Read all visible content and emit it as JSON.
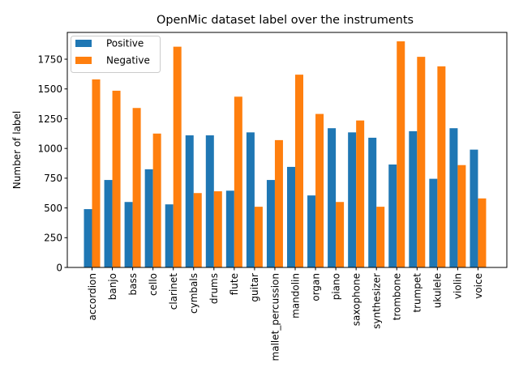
{
  "chart_data": {
    "type": "bar",
    "title": "OpenMic dataset label over the instruments",
    "xlabel": "",
    "ylabel": "Number of label",
    "ylim": [
      0,
      1975
    ],
    "yticks": [
      0,
      250,
      500,
      750,
      1000,
      1250,
      1500,
      1750
    ],
    "grid": false,
    "legend_position": "top-left",
    "categories": [
      "accordion",
      "banjo",
      "bass",
      "cello",
      "clarinet",
      "cymbals",
      "drums",
      "flute",
      "guitar",
      "mallet_percussion",
      "mandolin",
      "organ",
      "piano",
      "saxophone",
      "synthesizer",
      "trombone",
      "trumpet",
      "ukulele",
      "violin",
      "voice"
    ],
    "series": [
      {
        "name": "Positive",
        "color": "#1f77b4",
        "values": [
          490,
          735,
          550,
          825,
          530,
          1110,
          1110,
          645,
          1135,
          735,
          845,
          605,
          1170,
          1135,
          1090,
          865,
          1145,
          745,
          1170,
          990
        ]
      },
      {
        "name": "Negative",
        "color": "#ff7f0e",
        "values": [
          1580,
          1485,
          1340,
          1125,
          1855,
          625,
          640,
          1435,
          510,
          1070,
          1620,
          1290,
          550,
          1235,
          510,
          1900,
          1770,
          1690,
          860,
          580
        ]
      }
    ]
  }
}
